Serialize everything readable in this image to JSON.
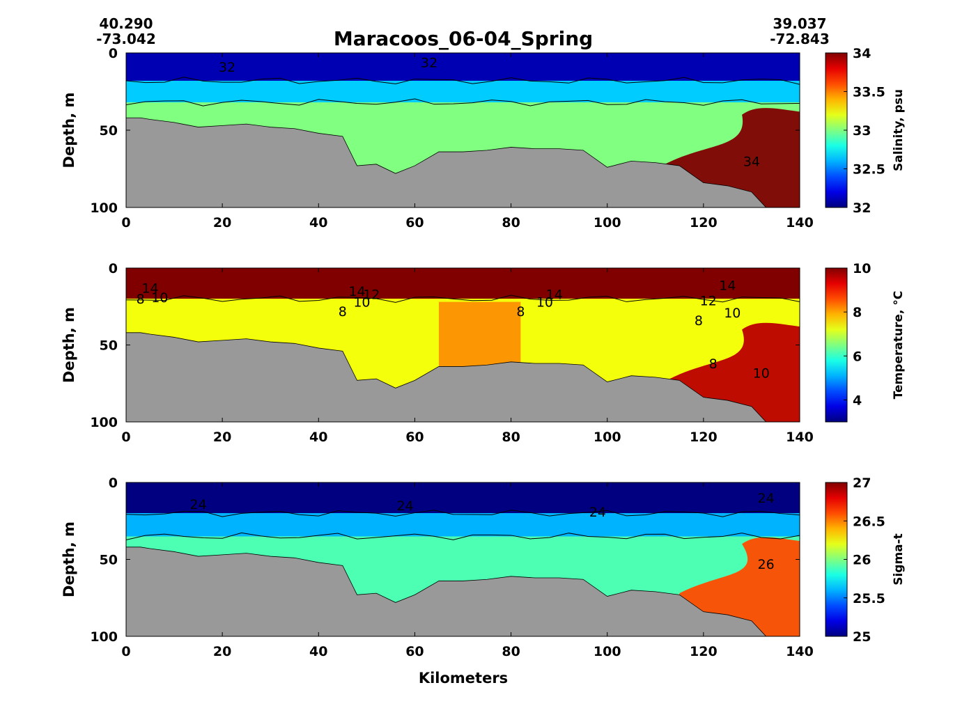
{
  "figure": {
    "title": "Maracoos_06-04_Spring",
    "start_lat": "40.290",
    "start_lon": "-73.042",
    "end_lat": "39.037",
    "end_lon": "-72.843",
    "xlabel": "Kilometers"
  },
  "chart_data": [
    {
      "type": "heatmap",
      "variable": "salinity",
      "ylabel": "Depth, m",
      "colorbar_label": "Salinity, psu",
      "xlim": [
        0,
        140
      ],
      "ylim": [
        100,
        0
      ],
      "x_ticks": [
        "0",
        "20",
        "40",
        "60",
        "80",
        "100",
        "120",
        "140"
      ],
      "y_ticks": [
        "0",
        "50",
        "100"
      ],
      "clim": [
        32,
        34
      ],
      "colorbar_ticks": [
        "32",
        "32.5",
        "33",
        "33.5",
        "34"
      ],
      "contour_labels": [
        {
          "text": "32",
          "x": 21,
          "y": 9
        },
        {
          "text": "32",
          "x": 63,
          "y": 6
        },
        {
          "text": "34",
          "x": 130,
          "y": 70
        }
      ],
      "layers": [
        {
          "top": 0,
          "bottom": 18,
          "value": 32.1
        },
        {
          "top": 18,
          "bottom": 32,
          "value": 32.65
        },
        {
          "top": 32,
          "bottom": 100,
          "value": 33.0
        }
      ],
      "features": [
        {
          "kind": "bottom_water_high",
          "x_from": 112,
          "x_to": 140,
          "value": 34.0
        }
      ]
    },
    {
      "type": "heatmap",
      "variable": "temperature",
      "ylabel": "Depth, m",
      "colorbar_label": "Temperature, °C",
      "xlim": [
        0,
        140
      ],
      "ylim": [
        100,
        0
      ],
      "x_ticks": [
        "0",
        "20",
        "40",
        "60",
        "80",
        "100",
        "120",
        "140"
      ],
      "y_ticks": [
        "0",
        "50",
        "100"
      ],
      "clim": [
        3,
        10
      ],
      "colorbar_ticks": [
        "4",
        "6",
        "8",
        "10"
      ],
      "contour_labels": [
        {
          "text": "14",
          "x": 5,
          "y": 13
        },
        {
          "text": "8",
          "x": 3,
          "y": 20
        },
        {
          "text": "10",
          "x": 7,
          "y": 19
        },
        {
          "text": "14",
          "x": 48,
          "y": 15
        },
        {
          "text": "12",
          "x": 51,
          "y": 17
        },
        {
          "text": "10",
          "x": 49,
          "y": 22
        },
        {
          "text": "8",
          "x": 45,
          "y": 28
        },
        {
          "text": "14",
          "x": 89,
          "y": 17
        },
        {
          "text": "10",
          "x": 87,
          "y": 22
        },
        {
          "text": "8",
          "x": 82,
          "y": 28
        },
        {
          "text": "14",
          "x": 125,
          "y": 11
        },
        {
          "text": "12",
          "x": 121,
          "y": 21
        },
        {
          "text": "10",
          "x": 126,
          "y": 29
        },
        {
          "text": "8",
          "x": 119,
          "y": 34
        },
        {
          "text": "8",
          "x": 122,
          "y": 62
        },
        {
          "text": "10",
          "x": 132,
          "y": 68
        }
      ],
      "layers": [
        {
          "top": 0,
          "bottom": 20,
          "value": 12.0
        },
        {
          "top": 20,
          "bottom": 100,
          "value": 7.3
        }
      ],
      "features": [
        {
          "kind": "warm_core",
          "x_from": 65,
          "x_to": 82,
          "value": 8.4
        },
        {
          "kind": "bottom_water_high",
          "x_from": 113,
          "x_to": 140,
          "value": 9.6
        }
      ]
    },
    {
      "type": "heatmap",
      "variable": "sigma_t",
      "ylabel": "Depth, m",
      "colorbar_label": "Sigma-t",
      "xlim": [
        0,
        140
      ],
      "ylim": [
        100,
        0
      ],
      "x_ticks": [
        "0",
        "20",
        "40",
        "60",
        "80",
        "100",
        "120",
        "140"
      ],
      "y_ticks": [
        "0",
        "50",
        "100"
      ],
      "clim": [
        25,
        27
      ],
      "colorbar_ticks": [
        "25",
        "25.5",
        "26",
        "26.5",
        "27"
      ],
      "contour_labels": [
        {
          "text": "24",
          "x": 15,
          "y": 14
        },
        {
          "text": "24",
          "x": 58,
          "y": 15
        },
        {
          "text": "24",
          "x": 98,
          "y": 19
        },
        {
          "text": "24",
          "x": 133,
          "y": 10
        },
        {
          "text": "26",
          "x": 133,
          "y": 53
        }
      ],
      "layers": [
        {
          "top": 0,
          "bottom": 20,
          "value": 25.0
        },
        {
          "top": 20,
          "bottom": 35,
          "value": 25.6
        },
        {
          "top": 35,
          "bottom": 100,
          "value": 25.9
        }
      ],
      "features": [
        {
          "kind": "bottom_water_high",
          "x_from": 115,
          "x_to": 140,
          "value": 26.6
        }
      ]
    }
  ],
  "bathymetry": {
    "x": [
      0,
      1,
      3,
      5,
      10,
      15,
      20,
      25,
      30,
      35,
      40,
      45,
      48,
      52,
      56,
      60,
      65,
      70,
      75,
      80,
      85,
      90,
      95,
      100,
      105,
      110,
      115,
      120,
      125,
      130,
      133
    ],
    "depth": [
      42,
      42,
      42,
      43,
      45,
      48,
      47,
      46,
      48,
      49,
      52,
      54,
      73,
      72,
      78,
      73,
      64,
      64,
      63,
      61,
      62,
      62,
      63,
      74,
      70,
      71,
      73,
      84,
      86,
      90,
      100
    ]
  },
  "colors": {
    "bathymetry": "#999999",
    "contour": "#000000"
  }
}
